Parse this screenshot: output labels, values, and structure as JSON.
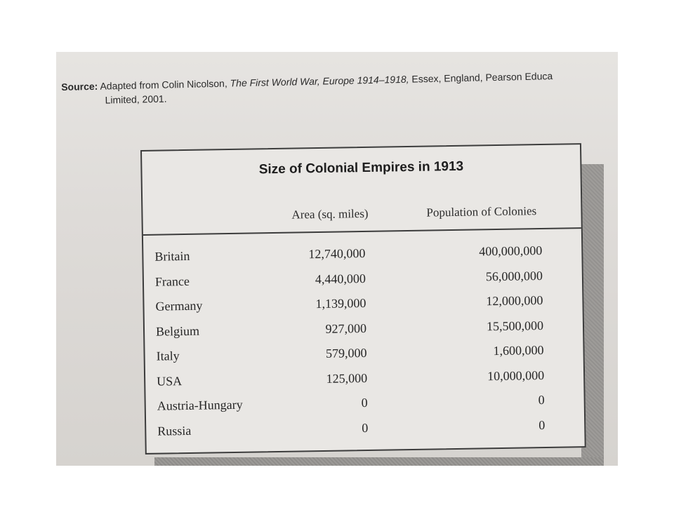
{
  "source": {
    "label": "Source:",
    "text_before": "Adapted from Colin Nicolson,",
    "title": "The First World War, Europe 1914–1918,",
    "text_after": "Essex, England, Pearson Educa",
    "line2": "Limited, 2001."
  },
  "table": {
    "title": "Size of Colonial Empires in 1913",
    "columns": {
      "area": "Area (sq. miles)",
      "population": "Population of Colonies"
    },
    "rows": [
      {
        "country": "Britain",
        "area": "12,740,000",
        "population": "400,000,000"
      },
      {
        "country": "France",
        "area": "4,440,000",
        "population": "56,000,000"
      },
      {
        "country": "Germany",
        "area": "1,139,000",
        "population": "12,000,000"
      },
      {
        "country": "Belgium",
        "area": "927,000",
        "population": "15,500,000"
      },
      {
        "country": "Italy",
        "area": "579,000",
        "population": "1,600,000"
      },
      {
        "country": "USA",
        "area": "125,000",
        "population": "10,000,000"
      },
      {
        "country": "Austria-Hungary",
        "area": "0",
        "population": "0"
      },
      {
        "country": "Russia",
        "area": "0",
        "population": "0"
      }
    ]
  }
}
